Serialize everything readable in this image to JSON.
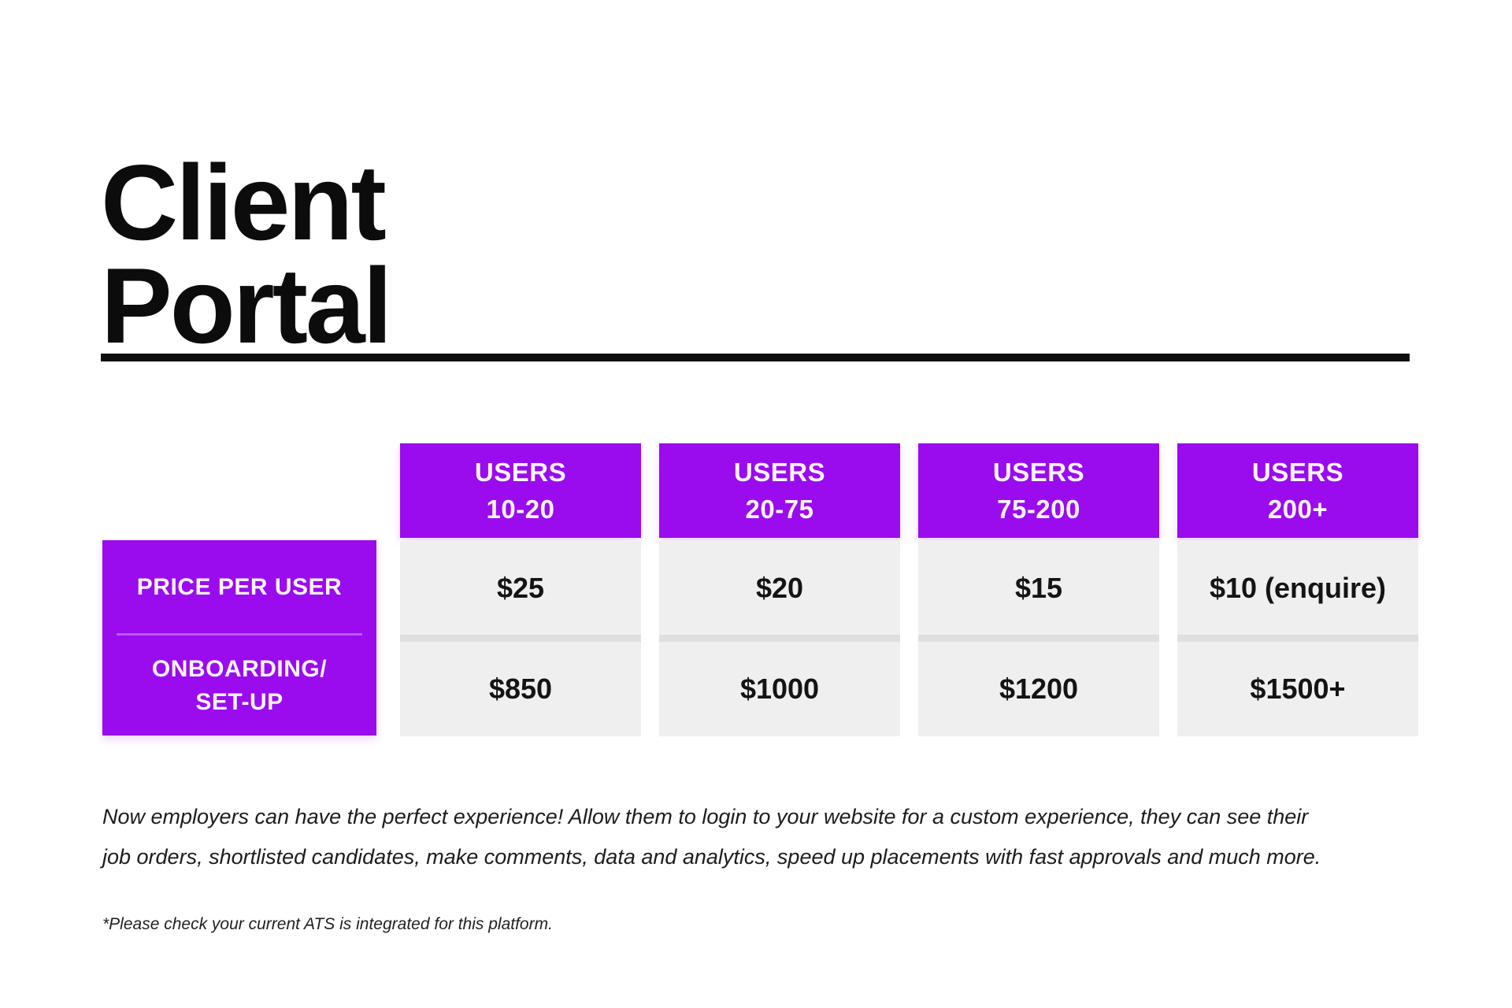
{
  "page": {
    "title_lines": [
      "Client",
      "Portal"
    ]
  },
  "colors": {
    "accent_purple": "#9a0bee",
    "header_text": "#fcf4fe",
    "cell_gray": "#efefef",
    "row_divider_gray": "#dfdfdf",
    "divider_black": "#0d0d0d",
    "text_dark": "#141414"
  },
  "pricing_table": {
    "row_headers": {
      "price_per_user": {
        "lines": [
          "PRICE PER USER"
        ]
      },
      "onboarding_setup": {
        "lines": [
          "ONBOARDING/",
          "SET-UP"
        ]
      }
    },
    "columns": [
      {
        "header_lines": [
          "USERS",
          "10-20"
        ],
        "price_per_user": "$25",
        "onboarding_setup": "$850"
      },
      {
        "header_lines": [
          "USERS",
          "20-75"
        ],
        "price_per_user": "$20",
        "onboarding_setup": "$1000"
      },
      {
        "header_lines": [
          "USERS",
          "75-200"
        ],
        "price_per_user": "$15",
        "onboarding_setup": "$1200"
      },
      {
        "header_lines": [
          "USERS",
          "200+"
        ],
        "price_per_user": "$10 (enquire)",
        "onboarding_setup": "$1500+"
      }
    ]
  },
  "description_lines": [
    "Now employers can have the perfect experience! Allow them to login to your website for a custom experience, they can see their",
    "job orders, shortlisted candidates, make comments, data and analytics, speed up placements with fast approvals and much more."
  ],
  "footnote": "*Please check your current ATS is integrated for this platform."
}
